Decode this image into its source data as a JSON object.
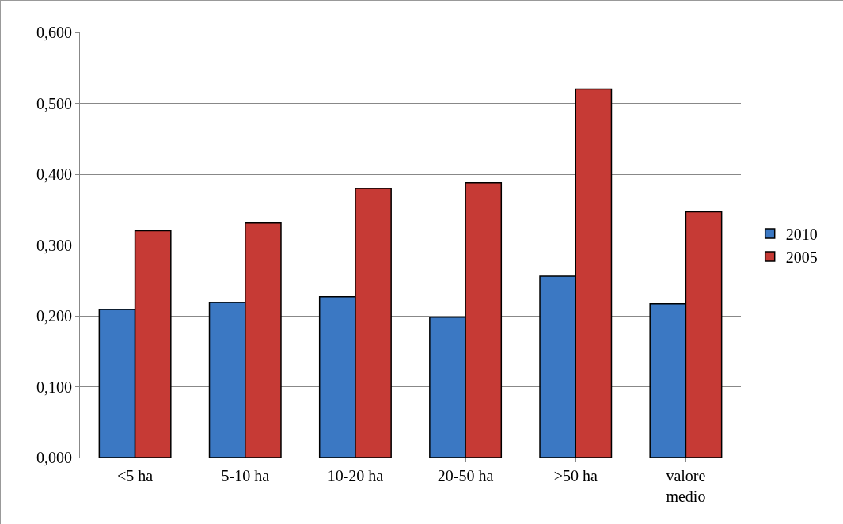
{
  "chart_data": {
    "type": "bar",
    "categories": [
      "<5 ha",
      "5-10 ha",
      "10-20 ha",
      "20-50 ha",
      ">50 ha",
      "valore medio"
    ],
    "series": [
      {
        "name": "2010",
        "color": "#3b78c3",
        "values": [
          0.209,
          0.219,
          0.227,
          0.198,
          0.256,
          0.217
        ]
      },
      {
        "name": "2005",
        "color": "#c63a35",
        "values": [
          0.32,
          0.331,
          0.38,
          0.388,
          0.52,
          0.347
        ]
      }
    ],
    "ylim": [
      0,
      0.6
    ],
    "yticks": [
      {
        "value": 0,
        "label": "0,000"
      },
      {
        "value": 0.1,
        "label": "0,100"
      },
      {
        "value": 0.2,
        "label": "0,200"
      },
      {
        "value": 0.3,
        "label": "0,300"
      },
      {
        "value": 0.4,
        "label": "0,400"
      },
      {
        "value": 0.5,
        "label": "0,500"
      },
      {
        "value": 0.6,
        "label": "0,600"
      }
    ],
    "grid": "y",
    "legend": "right"
  }
}
